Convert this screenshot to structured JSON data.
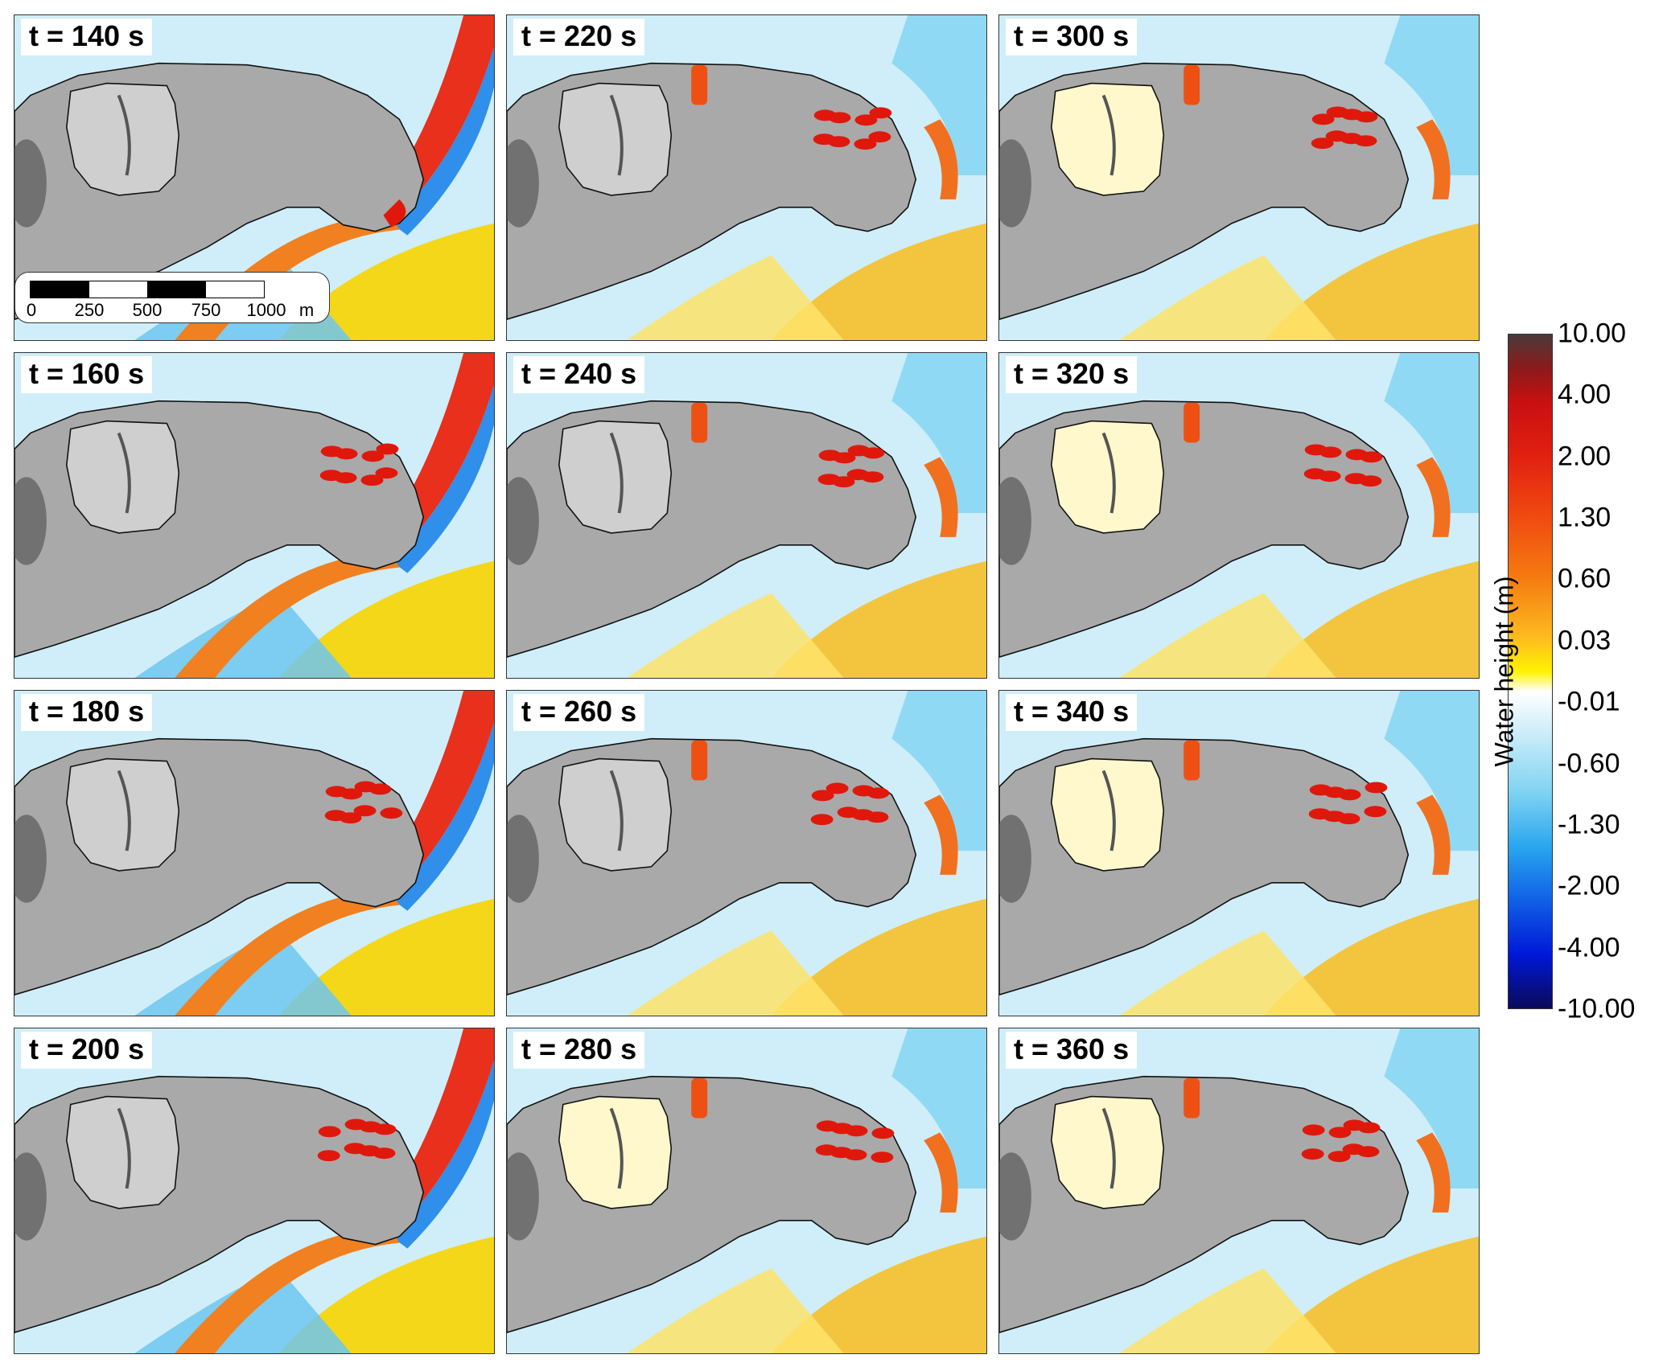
{
  "panels": [
    {
      "label": "t = 140 s"
    },
    {
      "label": "t = 220 s"
    },
    {
      "label": "t = 300 s"
    },
    {
      "label": "t = 160 s"
    },
    {
      "label": "t = 240 s"
    },
    {
      "label": "t = 320 s"
    },
    {
      "label": "t = 180 s"
    },
    {
      "label": "t = 260 s"
    },
    {
      "label": "t = 340 s"
    },
    {
      "label": "t = 200 s"
    },
    {
      "label": "t = 280 s"
    },
    {
      "label": "t = 360 s"
    }
  ],
  "scalebar": {
    "labels": [
      "0",
      "250",
      "500",
      "750",
      "1000"
    ],
    "unit": "m"
  },
  "colorbar": {
    "title": "Water  height (m)",
    "ticks": [
      "10.00",
      "4.00",
      "2.00",
      "1.30",
      "0.60",
      "0.03",
      "-0.01",
      "-0.60",
      "-1.30",
      "-2.00",
      "-4.00",
      "-10.00"
    ]
  },
  "colors": {
    "land": "#a9a9a9",
    "inundation": "#e0180c",
    "positive_wave": "#f5a623",
    "negative_wave": "#38aef0",
    "lagoon_fill": "#fff8cc"
  }
}
